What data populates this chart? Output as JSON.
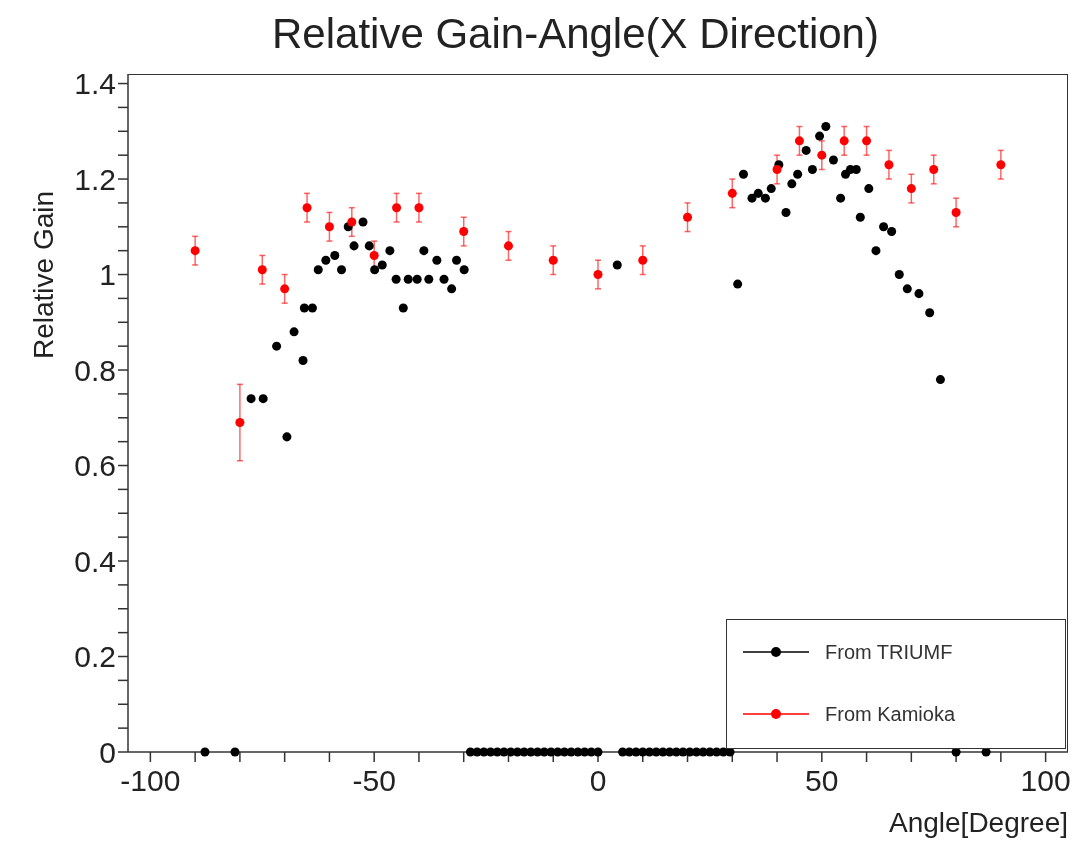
{
  "chart_data": {
    "type": "scatter",
    "title": "Relative Gain-Angle(X Direction)",
    "xlabel": "Angle[Degree]",
    "ylabel": "Relative Gain",
    "xlim": [
      -105,
      105
    ],
    "ylim": [
      0,
      1.42
    ],
    "xticks": [
      -100,
      {
        "value": -90,
        "label": null
      },
      {
        "value": -80,
        "label": null
      },
      {
        "value": -70,
        "label": null
      },
      {
        "value": -60,
        "label": null
      },
      -50,
      {
        "value": -40,
        "label": null
      },
      {
        "value": -30,
        "label": null
      },
      {
        "value": -20,
        "label": null
      },
      {
        "value": -10,
        "label": null
      },
      0,
      {
        "value": 10,
        "label": null
      },
      {
        "value": 20,
        "label": null
      },
      {
        "value": 30,
        "label": null
      },
      {
        "value": 40,
        "label": null
      },
      50,
      {
        "value": 60,
        "label": null
      },
      {
        "value": 70,
        "label": null
      },
      {
        "value": 80,
        "label": null
      },
      {
        "value": 90,
        "label": null
      },
      100
    ],
    "yticks": [
      0,
      {
        "value": 0.05,
        "label": null
      },
      {
        "value": 0.1,
        "label": null
      },
      {
        "value": 0.15,
        "label": null
      },
      0.2,
      {
        "value": 0.25,
        "label": null
      },
      {
        "value": 0.3,
        "label": null
      },
      {
        "value": 0.35,
        "label": null
      },
      0.4,
      {
        "value": 0.45,
        "label": null
      },
      {
        "value": 0.5,
        "label": null
      },
      {
        "value": 0.55,
        "label": null
      },
      0.6,
      {
        "value": 0.65,
        "label": null
      },
      {
        "value": 0.7,
        "label": null
      },
      {
        "value": 0.75,
        "label": null
      },
      0.8,
      {
        "value": 0.85,
        "label": null
      },
      {
        "value": 0.9,
        "label": null
      },
      {
        "value": 0.95,
        "label": null
      },
      1,
      {
        "value": 1.05,
        "label": null
      },
      {
        "value": 1.1,
        "label": null
      },
      {
        "value": 1.15,
        "label": null
      },
      1.2,
      {
        "value": 1.25,
        "label": null
      },
      {
        "value": 1.3,
        "label": null
      },
      {
        "value": 1.35,
        "label": null
      },
      1.4
    ],
    "grid": false,
    "legend": "bottom right",
    "marker": "circle",
    "series": [
      {
        "name": "From TRIUMF",
        "color": "#000000",
        "x": [
          -87.8,
          -81.1,
          -77.5,
          -74.8,
          -71.8,
          -69.5,
          -67.9,
          -65.9,
          -65.6,
          -63.8,
          -62.5,
          -60.8,
          -58.8,
          -57.3,
          -55.8,
          -54.5,
          -52.5,
          -51.1,
          -49.9,
          -48.2,
          -46.5,
          -45.1,
          -43.5,
          -42.4,
          -40.4,
          -38.9,
          -37.8,
          -36.0,
          -34.4,
          -32.7,
          -31.6,
          -29.9,
          -28.5,
          -27,
          -25.5,
          -24,
          -22.5,
          -21,
          -19.5,
          -18,
          -16.5,
          -15,
          -13.5,
          -12,
          -10.5,
          -9,
          -7.5,
          -6,
          -4.5,
          -3,
          -1.5,
          0,
          4.3,
          5.5,
          7,
          8.5,
          10,
          11.5,
          13,
          14.5,
          16,
          17.5,
          19,
          20.5,
          22,
          23.5,
          25,
          26.5,
          28,
          29.5,
          31.2,
          32.5,
          34.4,
          35.8,
          37.4,
          38.7,
          40.4,
          42.0,
          43.3,
          44.6,
          46.5,
          47.9,
          49.5,
          50.9,
          52.6,
          54.2,
          55.3,
          56.4,
          57.7,
          58.6,
          60.5,
          62.1,
          63.8,
          65.6,
          67.3,
          69.1,
          71.7,
          74.1,
          76.5,
          80,
          86.7
        ],
        "values": [
          0,
          0,
          0.74,
          0.74,
          0.85,
          0.66,
          0.88,
          0.82,
          0.93,
          0.93,
          1.01,
          1.03,
          1.04,
          1.01,
          1.1,
          1.06,
          1.11,
          1.06,
          1.01,
          1.02,
          1.05,
          0.99,
          0.93,
          0.99,
          0.99,
          1.05,
          0.99,
          1.03,
          0.99,
          0.97,
          1.03,
          1.01,
          0,
          0,
          0,
          0,
          0,
          0,
          0,
          0,
          0,
          0,
          0,
          0,
          0,
          0,
          0,
          0,
          0,
          0,
          0,
          0,
          1.02,
          0,
          0,
          0,
          0,
          0,
          0,
          0,
          0,
          0,
          0,
          0,
          0,
          0,
          0,
          0,
          0,
          0,
          0.98,
          1.21,
          1.16,
          1.17,
          1.16,
          1.18,
          1.23,
          1.13,
          1.19,
          1.21,
          1.26,
          1.22,
          1.29,
          1.31,
          1.24,
          1.16,
          1.21,
          1.22,
          1.22,
          1.12,
          1.18,
          1.05,
          1.1,
          1.09,
          1.0,
          0.97,
          0.96,
          0.92,
          0.78,
          0,
          0
        ]
      },
      {
        "name": "From Kamioka",
        "color": "#ff0000",
        "x": [
          -90,
          -80,
          -75,
          -70,
          -65,
          -60,
          -55,
          -50,
          -45,
          -40,
          -30,
          -20,
          -10,
          0,
          10,
          20,
          30,
          40,
          45,
          50,
          55,
          60,
          65,
          70,
          75,
          80,
          90
        ],
        "values": [
          1.05,
          0.69,
          1.01,
          0.97,
          1.14,
          1.1,
          1.11,
          1.04,
          1.14,
          1.14,
          1.09,
          1.06,
          1.03,
          1.0,
          1.03,
          1.12,
          1.17,
          1.22,
          1.28,
          1.25,
          1.28,
          1.28,
          1.23,
          1.18,
          1.22,
          1.13,
          1.23
        ],
        "errors": [
          0.03,
          0.08,
          0.03,
          0.03,
          0.03,
          0.03,
          0.03,
          0.03,
          0.03,
          0.03,
          0.03,
          0.03,
          0.03,
          0.03,
          0.03,
          0.03,
          0.03,
          0.03,
          0.03,
          0.03,
          0.03,
          0.03,
          0.03,
          0.03,
          0.03,
          0.03,
          0.03
        ]
      }
    ]
  }
}
